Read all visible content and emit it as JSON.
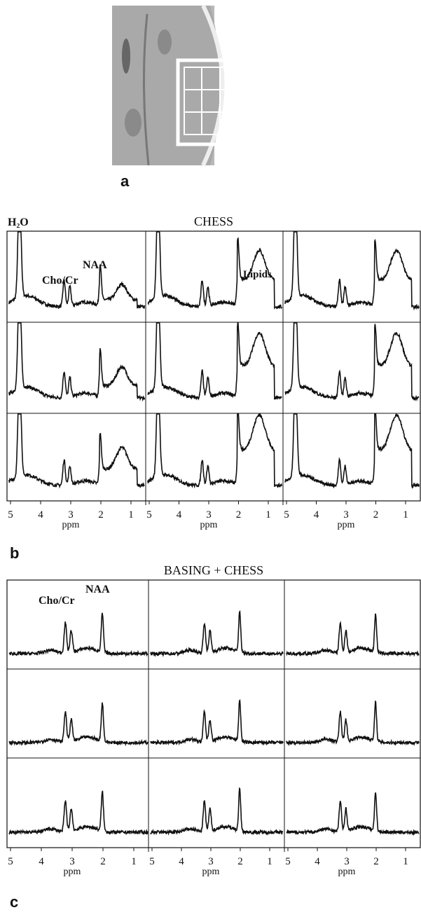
{
  "panel_a": {
    "label": "a"
  },
  "panel_b": {
    "label": "b",
    "title": "CHESS",
    "water_label": "H₂O",
    "annotations": {
      "cho": "Cho/Cr",
      "naa": "NAA",
      "lipids": "Lipids"
    },
    "ticks": [
      "5",
      "4",
      "3",
      "2",
      "1"
    ],
    "axis_label": "ppm"
  },
  "panel_c": {
    "label": "c",
    "title": "BASING + CHESS",
    "annotations": {
      "cho": "Cho/Cr",
      "naa": "NAA"
    },
    "ticks": [
      "5",
      "4",
      "3",
      "2",
      "1"
    ],
    "axis_label": "ppm"
  }
}
